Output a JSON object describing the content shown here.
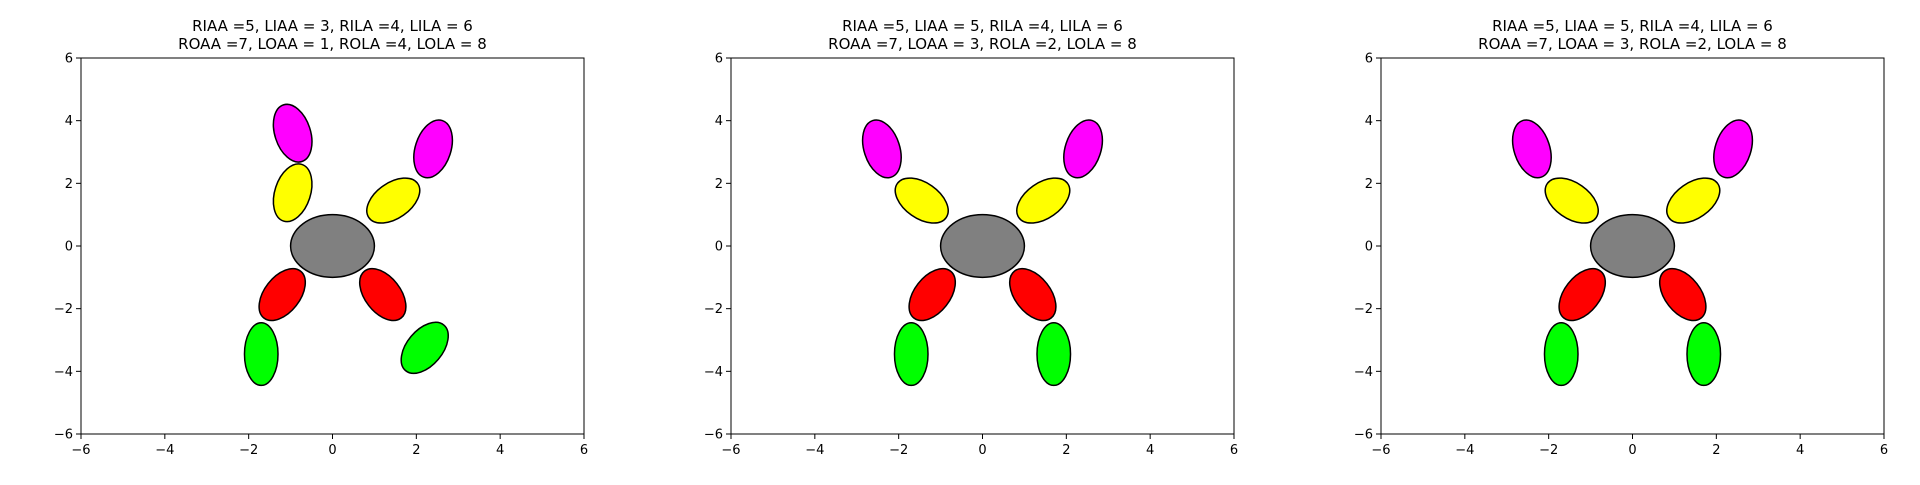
{
  "chart_data": [
    {
      "type": "scatter",
      "title_lines": [
        "RIAA =5, LIAA = 3, RILA =4, LILA = 6",
        "ROAA =7, LOAA = 1, ROLA =4, LOLA = 8"
      ],
      "xlim": [
        -6,
        6
      ],
      "ylim": [
        -6,
        6
      ],
      "xticks": [
        "−6",
        "−4",
        "−2",
        "0",
        "2",
        "4",
        "6"
      ],
      "yticks": [
        "−6",
        "−4",
        "−2",
        "0",
        "2",
        "4",
        "6"
      ],
      "grid": false,
      "ellipses": [
        {
          "part": "torso",
          "cx": 0.0,
          "cy": 0.0,
          "w": 2.0,
          "h": 2.0,
          "angle": 0,
          "color": "#808080"
        },
        {
          "part": "right-inner-arm",
          "cx": -0.95,
          "cy": 1.7,
          "w": 0.85,
          "h": 1.9,
          "angle": 18,
          "color": "#ffff00"
        },
        {
          "part": "right-outer-arm",
          "cx": -0.95,
          "cy": 3.6,
          "w": 0.85,
          "h": 1.9,
          "angle": -18,
          "color": "#ff00ff"
        },
        {
          "part": "left-inner-arm",
          "cx": 1.45,
          "cy": 1.45,
          "w": 0.85,
          "h": 1.9,
          "angle": 55,
          "color": "#ffff00"
        },
        {
          "part": "left-outer-arm",
          "cx": 2.4,
          "cy": 3.1,
          "w": 0.85,
          "h": 1.9,
          "angle": 18,
          "color": "#ff00ff"
        },
        {
          "part": "right-inner-leg",
          "cx": -1.2,
          "cy": -1.55,
          "w": 0.85,
          "h": 1.9,
          "angle": 38,
          "color": "#ff0000"
        },
        {
          "part": "right-outer-leg",
          "cx": -1.7,
          "cy": -3.45,
          "w": 0.8,
          "h": 2.0,
          "angle": 0,
          "color": "#00ff00"
        },
        {
          "part": "left-inner-leg",
          "cx": 1.2,
          "cy": -1.55,
          "w": 0.85,
          "h": 1.9,
          "angle": -38,
          "color": "#ff0000"
        },
        {
          "part": "left-outer-leg",
          "cx": 2.2,
          "cy": -3.25,
          "w": 0.85,
          "h": 1.9,
          "angle": 40,
          "color": "#00ff00"
        }
      ]
    },
    {
      "type": "scatter",
      "title_lines": [
        "RIAA =5, LIAA = 5, RILA =4, LILA = 6",
        "ROAA =7, LOAA = 3, ROLA =2, LOLA = 8"
      ],
      "xlim": [
        -6,
        6
      ],
      "ylim": [
        -6,
        6
      ],
      "xticks": [
        "−6",
        "−4",
        "−2",
        "0",
        "2",
        "4",
        "6"
      ],
      "yticks": [
        "−6",
        "−4",
        "−2",
        "0",
        "2",
        "4",
        "6"
      ],
      "grid": false,
      "ellipses": [
        {
          "part": "torso",
          "cx": 0.0,
          "cy": 0.0,
          "w": 2.0,
          "h": 2.0,
          "angle": 0,
          "color": "#808080"
        },
        {
          "part": "right-inner-arm",
          "cx": -1.45,
          "cy": 1.45,
          "w": 0.85,
          "h": 1.9,
          "angle": -55,
          "color": "#ffff00"
        },
        {
          "part": "right-outer-arm",
          "cx": -2.4,
          "cy": 3.1,
          "w": 0.85,
          "h": 1.9,
          "angle": -18,
          "color": "#ff00ff"
        },
        {
          "part": "left-inner-arm",
          "cx": 1.45,
          "cy": 1.45,
          "w": 0.85,
          "h": 1.9,
          "angle": 55,
          "color": "#ffff00"
        },
        {
          "part": "left-outer-arm",
          "cx": 2.4,
          "cy": 3.1,
          "w": 0.85,
          "h": 1.9,
          "angle": 18,
          "color": "#ff00ff"
        },
        {
          "part": "right-inner-leg",
          "cx": -1.2,
          "cy": -1.55,
          "w": 0.85,
          "h": 1.9,
          "angle": 38,
          "color": "#ff0000"
        },
        {
          "part": "right-outer-leg",
          "cx": -1.7,
          "cy": -3.45,
          "w": 0.8,
          "h": 2.0,
          "angle": 0,
          "color": "#00ff00"
        },
        {
          "part": "left-inner-leg",
          "cx": 1.2,
          "cy": -1.55,
          "w": 0.85,
          "h": 1.9,
          "angle": -38,
          "color": "#ff0000"
        },
        {
          "part": "left-outer-leg",
          "cx": 1.7,
          "cy": -3.45,
          "w": 0.8,
          "h": 2.0,
          "angle": 0,
          "color": "#00ff00"
        }
      ]
    },
    {
      "type": "scatter",
      "title_lines": [
        "RIAA =5, LIAA = 5, RILA =4, LILA = 6",
        "ROAA =7, LOAA = 3, ROLA =2, LOLA = 8"
      ],
      "xlim": [
        -6,
        6
      ],
      "ylim": [
        -6,
        6
      ],
      "xticks": [
        "−6",
        "−4",
        "−2",
        "0",
        "2",
        "4",
        "6"
      ],
      "yticks": [
        "−6",
        "−4",
        "−2",
        "0",
        "2",
        "4",
        "6"
      ],
      "grid": false,
      "ellipses": [
        {
          "part": "torso",
          "cx": 0.0,
          "cy": 0.0,
          "w": 2.0,
          "h": 2.0,
          "angle": 0,
          "color": "#808080"
        },
        {
          "part": "right-inner-arm",
          "cx": -1.45,
          "cy": 1.45,
          "w": 0.85,
          "h": 1.9,
          "angle": -55,
          "color": "#ffff00"
        },
        {
          "part": "right-outer-arm",
          "cx": -2.4,
          "cy": 3.1,
          "w": 0.85,
          "h": 1.9,
          "angle": -18,
          "color": "#ff00ff"
        },
        {
          "part": "left-inner-arm",
          "cx": 1.45,
          "cy": 1.45,
          "w": 0.85,
          "h": 1.9,
          "angle": 55,
          "color": "#ffff00"
        },
        {
          "part": "left-outer-arm",
          "cx": 2.4,
          "cy": 3.1,
          "w": 0.85,
          "h": 1.9,
          "angle": 18,
          "color": "#ff00ff"
        },
        {
          "part": "right-inner-leg",
          "cx": -1.2,
          "cy": -1.55,
          "w": 0.85,
          "h": 1.9,
          "angle": 38,
          "color": "#ff0000"
        },
        {
          "part": "right-outer-leg",
          "cx": -1.7,
          "cy": -3.45,
          "w": 0.8,
          "h": 2.0,
          "angle": 0,
          "color": "#00ff00"
        },
        {
          "part": "left-inner-leg",
          "cx": 1.2,
          "cy": -1.55,
          "w": 0.85,
          "h": 1.9,
          "angle": -38,
          "color": "#ff0000"
        },
        {
          "part": "left-outer-leg",
          "cx": 1.7,
          "cy": -3.45,
          "w": 0.8,
          "h": 2.0,
          "angle": 0,
          "color": "#00ff00"
        }
      ]
    }
  ]
}
